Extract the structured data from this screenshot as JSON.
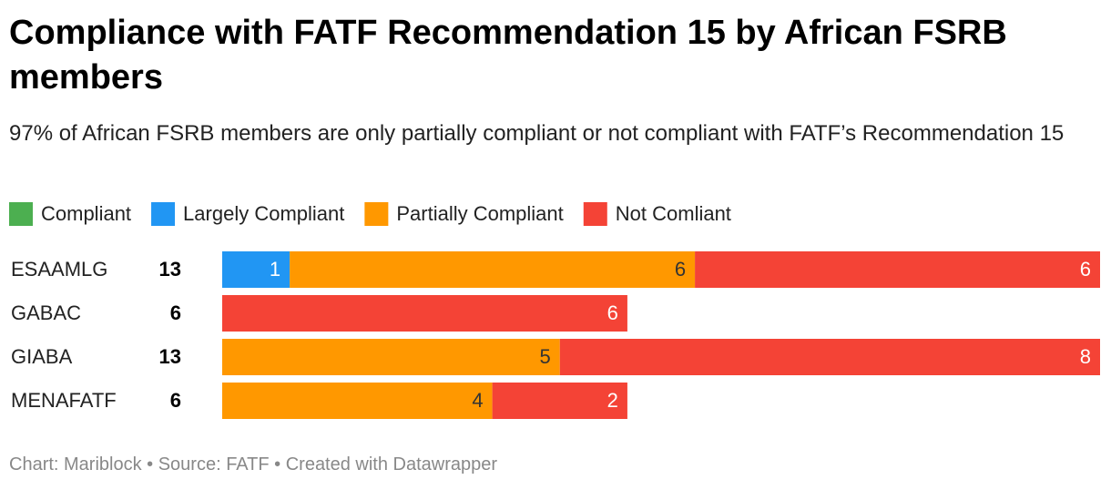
{
  "chart_data": {
    "type": "stacked-bar",
    "title": "Compliance with FATF Recommendation 15 by African FSRB members",
    "subtitle": "97% of African FSRB members are only partially compliant or not compliant with FATF’s Recommendation 15",
    "footer": "Chart: Mariblock • Source: FATF • Created with Datawrapper",
    "categories": [
      "ESAAMLG",
      "GABAC",
      "GIABA",
      "MENAFATF"
    ],
    "totals": [
      13,
      6,
      13,
      6
    ],
    "series": [
      {
        "name": "Compliant",
        "color": "#4caf50",
        "values": [
          0,
          0,
          0,
          0
        ]
      },
      {
        "name": "Largely Compliant",
        "color": "#2196f3",
        "values": [
          1,
          0,
          0,
          0
        ]
      },
      {
        "name": "Partially Compliant",
        "color": "#ff9800",
        "values": [
          6,
          0,
          5,
          4
        ]
      },
      {
        "name": "Not Comliant",
        "color": "#f44336",
        "values": [
          6,
          6,
          8,
          2
        ]
      }
    ]
  }
}
